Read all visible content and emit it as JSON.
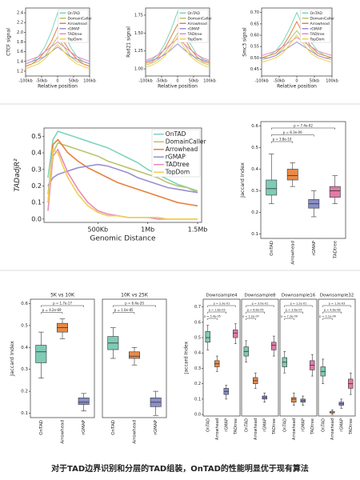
{
  "chart_data": [
    {
      "type": "line",
      "ylabel": "CTCF signal",
      "xlabel": "Relative position",
      "x": [
        -100,
        -80,
        -60,
        -40,
        -20,
        0,
        20,
        40,
        60,
        80,
        100
      ],
      "xlim": [
        -100,
        100
      ],
      "xticks": [
        {
          "value": -100,
          "label": "-100kb"
        },
        {
          "value": -50,
          "label": "-50kb"
        },
        0,
        {
          "value": 50,
          "label": "50kb"
        },
        {
          "value": 100,
          "label": "100kb"
        }
      ],
      "ylim": [
        1.1,
        2.5
      ],
      "yticks": [
        1.2,
        1.4,
        1.6,
        1.8,
        {
          "value": 2.0,
          "label": "2.0"
        },
        2.2,
        2.4
      ],
      "legend": "upper right",
      "series": [
        {
          "name": "OnTAD",
          "color": "#7fd3bf",
          "values": [
            1.35,
            1.4,
            1.5,
            1.7,
            2.0,
            2.4,
            2.0,
            1.7,
            1.5,
            1.4,
            1.35
          ]
        },
        {
          "name": "DomainCaller",
          "color": "#b8c46e",
          "values": [
            1.3,
            1.35,
            1.4,
            1.5,
            1.7,
            1.9,
            1.7,
            1.5,
            1.4,
            1.35,
            1.3
          ]
        },
        {
          "name": "Arrowhead",
          "color": "#e5803f",
          "values": [
            1.3,
            1.35,
            1.45,
            1.6,
            1.8,
            2.1,
            1.8,
            1.6,
            1.45,
            1.35,
            1.3
          ]
        },
        {
          "name": "rGMAP",
          "color": "#9a8fd0",
          "values": [
            1.35,
            1.4,
            1.45,
            1.5,
            1.6,
            1.7,
            1.6,
            1.5,
            1.45,
            1.4,
            1.35
          ]
        },
        {
          "name": "TADtree",
          "color": "#e88ab8",
          "values": [
            1.4,
            1.45,
            1.5,
            1.6,
            1.7,
            1.8,
            1.7,
            1.6,
            1.5,
            1.45,
            1.4
          ]
        },
        {
          "name": "TopDom",
          "color": "#f0cf4f",
          "values": [
            1.25,
            1.3,
            1.35,
            1.45,
            1.6,
            1.75,
            1.6,
            1.45,
            1.35,
            1.3,
            1.25
          ]
        }
      ]
    },
    {
      "type": "line",
      "ylabel": "Rad21 signal",
      "xlabel": "Relative position",
      "x": [
        -100,
        -80,
        -60,
        -40,
        -20,
        0,
        20,
        40,
        60,
        80,
        100
      ],
      "xlim": [
        -100,
        100
      ],
      "xticks": [
        {
          "value": -100,
          "label": "-100kb"
        },
        {
          "value": -50,
          "label": "-50kb"
        },
        0,
        {
          "value": 50,
          "label": "50kb"
        },
        {
          "value": 100,
          "label": "100kb"
        }
      ],
      "ylim": [
        0.9,
        1.85
      ],
      "yticks": [
        {
          "value": 1,
          "label": "1.00"
        },
        1.25,
        {
          "value": 1.5,
          "label": "1.50"
        },
        1.75
      ],
      "legend": "upper right",
      "series": [
        {
          "name": "OnTAD",
          "color": "#7fd3bf",
          "values": [
            1.1,
            1.13,
            1.2,
            1.35,
            1.55,
            1.8,
            1.55,
            1.35,
            1.2,
            1.13,
            1.1
          ]
        },
        {
          "name": "DomainCaller",
          "color": "#b8c46e",
          "values": [
            1.05,
            1.08,
            1.13,
            1.22,
            1.35,
            1.5,
            1.35,
            1.22,
            1.13,
            1.08,
            1.05
          ]
        },
        {
          "name": "Arrowhead",
          "color": "#e5803f",
          "values": [
            1.08,
            1.1,
            1.17,
            1.28,
            1.45,
            1.62,
            1.45,
            1.28,
            1.17,
            1.1,
            1.08
          ]
        },
        {
          "name": "rGMAP",
          "color": "#9a8fd0",
          "values": [
            1.1,
            1.12,
            1.15,
            1.2,
            1.27,
            1.35,
            1.27,
            1.2,
            1.15,
            1.12,
            1.1
          ]
        },
        {
          "name": "TADtree",
          "color": "#e88ab8",
          "values": [
            1.12,
            1.15,
            1.2,
            1.27,
            1.35,
            1.42,
            1.35,
            1.27,
            1.2,
            1.15,
            1.12
          ]
        },
        {
          "name": "TopDom",
          "color": "#f0cf4f",
          "values": [
            1.02,
            1.05,
            1.1,
            1.18,
            1.3,
            1.45,
            1.3,
            1.18,
            1.1,
            1.05,
            1.02
          ]
        }
      ]
    },
    {
      "type": "line",
      "ylabel": "Smc3 signal",
      "xlabel": "Relative position",
      "x": [
        -100,
        -80,
        -60,
        -40,
        -20,
        0,
        20,
        40,
        60,
        80,
        100
      ],
      "xlim": [
        -100,
        100
      ],
      "xticks": [
        {
          "value": -100,
          "label": "-100kb"
        },
        {
          "value": -50,
          "label": "-50kb"
        },
        0,
        {
          "value": 50,
          "label": "50kb"
        },
        {
          "value": 100,
          "label": "100kb"
        }
      ],
      "ylim": [
        0.42,
        0.72
      ],
      "yticks": [
        0.45,
        {
          "value": 0.5,
          "label": "0.50"
        },
        0.55,
        {
          "value": 0.6,
          "label": "0.60"
        },
        0.65,
        {
          "value": 0.7,
          "label": "0.70"
        }
      ],
      "legend": "upper right",
      "series": [
        {
          "name": "OnTAD",
          "color": "#7fd3bf",
          "values": [
            0.5,
            0.51,
            0.53,
            0.57,
            0.63,
            0.7,
            0.63,
            0.57,
            0.53,
            0.51,
            0.5
          ]
        },
        {
          "name": "DomainCaller",
          "color": "#b8c46e",
          "values": [
            0.49,
            0.5,
            0.51,
            0.54,
            0.58,
            0.62,
            0.58,
            0.54,
            0.51,
            0.5,
            0.49
          ]
        },
        {
          "name": "Arrowhead",
          "color": "#e5803f",
          "values": [
            0.5,
            0.51,
            0.52,
            0.55,
            0.6,
            0.66,
            0.6,
            0.55,
            0.52,
            0.51,
            0.5
          ]
        },
        {
          "name": "rGMAP",
          "color": "#9a8fd0",
          "values": [
            0.5,
            0.5,
            0.51,
            0.53,
            0.55,
            0.57,
            0.55,
            0.53,
            0.51,
            0.5,
            0.5
          ]
        },
        {
          "name": "TADtree",
          "color": "#e88ab8",
          "values": [
            0.51,
            0.52,
            0.53,
            0.55,
            0.57,
            0.59,
            0.57,
            0.55,
            0.53,
            0.52,
            0.51
          ]
        },
        {
          "name": "TopDom",
          "color": "#f0cf4f",
          "values": [
            0.48,
            0.49,
            0.5,
            0.52,
            0.56,
            0.6,
            0.56,
            0.52,
            0.5,
            0.49,
            0.48
          ]
        }
      ]
    },
    {
      "type": "line",
      "ylabel": "TADadjR²",
      "xlabel": "Genomic Distance",
      "x": [
        0,
        50,
        100,
        150,
        200,
        300,
        400,
        500,
        600,
        700,
        800,
        900,
        1000,
        1100,
        1200,
        1300,
        1400,
        1500
      ],
      "xlim": [
        -40,
        1540
      ],
      "xticks": [
        {
          "value": 500,
          "label": "500Kb"
        },
        {
          "value": 1000,
          "label": "1Mb"
        },
        {
          "value": 1500,
          "label": "1.5Mb"
        }
      ],
      "ylim": [
        -0.02,
        0.55
      ],
      "yticks": [
        {
          "value": 0,
          "label": "0.0"
        },
        0.1,
        0.2,
        0.3,
        0.4,
        0.5
      ],
      "legend": "upper right",
      "series": [
        {
          "name": "OnTAD",
          "color": "#7fd3bf",
          "values": [
            0.25,
            0.48,
            0.53,
            0.52,
            0.51,
            0.49,
            0.47,
            0.45,
            0.43,
            0.4,
            0.37,
            0.34,
            0.3,
            0.27,
            0.24,
            0.21,
            0.19,
            0.16
          ]
        },
        {
          "name": "DomainCaller",
          "color": "#b8c46e",
          "values": [
            0.15,
            0.4,
            0.46,
            0.45,
            0.44,
            0.42,
            0.4,
            0.38,
            0.35,
            0.33,
            0.31,
            0.29,
            0.27,
            0.25,
            0.22,
            0.2,
            0.19,
            0.17
          ]
        },
        {
          "name": "Arrowhead",
          "color": "#e5803f",
          "values": [
            0.1,
            0.45,
            0.48,
            0.44,
            0.4,
            0.35,
            0.31,
            0.28,
            0.25,
            0.22,
            0.2,
            0.18,
            0.16,
            0.14,
            0.12,
            0.1,
            0.09,
            0.08
          ]
        },
        {
          "name": "rGMAP",
          "color": "#9a8fd0",
          "values": [
            0.2,
            0.25,
            0.27,
            0.28,
            0.29,
            0.31,
            0.32,
            0.33,
            0.32,
            0.3,
            0.28,
            0.25,
            0.23,
            0.21,
            0.19,
            0.18,
            0.17,
            0.16
          ]
        },
        {
          "name": "TADtree",
          "color": "#e88ab8",
          "values": [
            0.05,
            0.38,
            0.42,
            0.35,
            0.28,
            0.18,
            0.1,
            0.05,
            0.03,
            0.02,
            0.01,
            0.01,
            0.01,
            0,
            0,
            0,
            0,
            0
          ]
        },
        {
          "name": "TopDom",
          "color": "#f0cf4f",
          "values": [
            0.1,
            0.42,
            0.4,
            0.32,
            0.25,
            0.15,
            0.08,
            0.04,
            0.02,
            0.02,
            0.01,
            0.01,
            0.01,
            0.01,
            0,
            0,
            0,
            0
          ]
        }
      ]
    },
    {
      "type": "box",
      "ylabel": "Jaccard Index",
      "categories": [
        "OnTAD",
        "Arrowhead",
        "rGMAP",
        "TADtree"
      ],
      "colors": [
        "#7fcbb5",
        "#e88a48",
        "#8a8fc8",
        "#e17ba8"
      ],
      "ylim": [
        0.08,
        0.62
      ],
      "yticks": [
        0.1,
        0.2,
        0.3,
        0.4,
        0.5,
        0.6
      ],
      "annotations": [
        "p = 7.4e-02",
        "p = 8.3e-06",
        "p = 3.8e-10"
      ],
      "boxes": [
        {
          "low": 0.24,
          "q1": 0.28,
          "median": 0.31,
          "q3": 0.35,
          "high": 0.47
        },
        {
          "low": 0.32,
          "q1": 0.35,
          "median": 0.37,
          "q3": 0.4,
          "high": 0.43
        },
        {
          "low": 0.18,
          "q1": 0.22,
          "median": 0.24,
          "q3": 0.26,
          "high": 0.3
        },
        {
          "low": 0.24,
          "q1": 0.27,
          "median": 0.3,
          "q3": 0.32,
          "high": 0.37
        }
      ]
    },
    {
      "type": "box",
      "title": "5K vs 10K",
      "ylabel": "Jaccard Index",
      "categories": [
        "OnTAD",
        "Arrowhead",
        "rGMAP"
      ],
      "colors": [
        "#7fcbb5",
        "#e88a48",
        "#8a8fc8"
      ],
      "ylim": [
        0.08,
        0.62
      ],
      "yticks": [
        0.1,
        0.2,
        0.3,
        0.4,
        0.5,
        0.6
      ],
      "annotations": [
        "p = 1.7e-17",
        "p = 4.2e-69"
      ],
      "boxes": [
        {
          "low": 0.26,
          "q1": 0.33,
          "median": 0.38,
          "q3": 0.41,
          "high": 0.47
        },
        {
          "low": 0.44,
          "q1": 0.47,
          "median": 0.49,
          "q3": 0.51,
          "high": 0.53
        },
        {
          "low": 0.11,
          "q1": 0.14,
          "median": 0.15,
          "q3": 0.17,
          "high": 0.19
        }
      ]
    },
    {
      "type": "box",
      "title": "10K vs 25K",
      "categories": [
        "OnTAD",
        "Arrowhead",
        "rGMAP"
      ],
      "colors": [
        "#7fcbb5",
        "#e88a48",
        "#8a8fc8"
      ],
      "ylim": [
        0.08,
        0.62
      ],
      "annotations": [
        "p = 6.4e-20",
        "p = 1.0e-85"
      ],
      "boxes": [
        {
          "low": 0.35,
          "q1": 0.39,
          "median": 0.42,
          "q3": 0.45,
          "high": 0.49
        },
        {
          "low": 0.32,
          "q1": 0.35,
          "median": 0.36,
          "q3": 0.38,
          "high": 0.4
        },
        {
          "low": 0.09,
          "q1": 0.13,
          "median": 0.15,
          "q3": 0.17,
          "high": 0.2
        }
      ]
    },
    {
      "type": "box",
      "title": "Downsample4",
      "ylabel": "Jaccard Index",
      "categories": [
        "OnTAD",
        "Arrowhead",
        "rGMAP",
        "TADtree"
      ],
      "colors": [
        "#7fcbb5",
        "#e88a48",
        "#8a8fc8",
        "#e17ba8"
      ],
      "ylim": [
        -0.01,
        0.75
      ],
      "yticks": [
        {
          "value": 0,
          "label": "0.0"
        },
        0.1,
        0.2,
        0.3,
        0.4,
        0.5,
        0.6,
        0.7
      ],
      "annotations": [
        "p = 2.3e-01",
        "p = 1.8e-03",
        "p = 5.4e-05"
      ],
      "boxes": [
        {
          "low": 0.42,
          "q1": 0.47,
          "median": 0.5,
          "q3": 0.54,
          "high": 0.58
        },
        {
          "low": 0.28,
          "q1": 0.31,
          "median": 0.33,
          "q3": 0.35,
          "high": 0.38
        },
        {
          "low": 0.1,
          "q1": 0.13,
          "median": 0.15,
          "q3": 0.17,
          "high": 0.19
        },
        {
          "low": 0.46,
          "q1": 0.5,
          "median": 0.53,
          "q3": 0.55,
          "high": 0.59
        }
      ]
    },
    {
      "type": "box",
      "title": "Downsample8",
      "categories": [
        "OnTAD",
        "Arrowhead",
        "rGMAP",
        "TADtree"
      ],
      "colors": [
        "#7fcbb5",
        "#e88a48",
        "#8a8fc8",
        "#e17ba8"
      ],
      "ylim": [
        -0.01,
        0.75
      ],
      "annotations": [
        "p = 3.0e-01",
        "p = 6.8e-05",
        "p = 1.2e-07"
      ],
      "boxes": [
        {
          "low": 0.34,
          "q1": 0.38,
          "median": 0.41,
          "q3": 0.44,
          "high": 0.48
        },
        {
          "low": 0.17,
          "q1": 0.2,
          "median": 0.22,
          "q3": 0.24,
          "high": 0.27
        },
        {
          "low": 0.08,
          "q1": 0.1,
          "median": 0.11,
          "q3": 0.12,
          "high": 0.14
        },
        {
          "low": 0.38,
          "q1": 0.42,
          "median": 0.45,
          "q3": 0.47,
          "high": 0.51
        }
      ]
    },
    {
      "type": "box",
      "title": "Downsample16",
      "categories": [
        "OnTAD",
        "Arrowhead",
        "rGMAP",
        "TADtree"
      ],
      "colors": [
        "#7fcbb5",
        "#e88a48",
        "#8a8fc8",
        "#e17ba8"
      ],
      "ylim": [
        -0.01,
        0.75
      ],
      "annotations": [
        "p = 1.2e-01",
        "p = 3.6e-07",
        "p = 7.3e-09"
      ],
      "boxes": [
        {
          "low": 0.27,
          "q1": 0.31,
          "median": 0.34,
          "q3": 0.37,
          "high": 0.41
        },
        {
          "low": 0.06,
          "q1": 0.08,
          "median": 0.1,
          "q3": 0.11,
          "high": 0.14
        },
        {
          "low": 0.06,
          "q1": 0.08,
          "median": 0.09,
          "q3": 0.1,
          "high": 0.12
        },
        {
          "low": 0.25,
          "q1": 0.29,
          "median": 0.32,
          "q3": 0.35,
          "high": 0.39
        }
      ]
    },
    {
      "type": "box",
      "title": "Downsample32",
      "categories": [
        "OnTAD",
        "Arrowhead",
        "rGMAP",
        "TADtree"
      ],
      "colors": [
        "#7fcbb5",
        "#e88a48",
        "#8a8fc8",
        "#e17ba8"
      ],
      "ylim": [
        -0.01,
        0.75
      ],
      "annotations": [
        "p = 1.3e-03",
        "p = 4.6e-08",
        "p = 2.1e-09"
      ],
      "boxes": [
        {
          "low": 0.2,
          "q1": 0.25,
          "median": 0.28,
          "q3": 0.31,
          "high": 0.36
        },
        {
          "low": 0,
          "q1": 0.01,
          "median": 0.01,
          "q3": 0.02,
          "high": 0.03
        },
        {
          "low": 0.04,
          "q1": 0.06,
          "median": 0.07,
          "q3": 0.08,
          "high": 0.1
        },
        {
          "low": 0.13,
          "q1": 0.17,
          "median": 0.2,
          "q3": 0.23,
          "high": 0.27
        }
      ]
    }
  ],
  "caption": "对于TAD边界识别和分层的TAD组装，OnTAD的性能明显优于现有算法"
}
